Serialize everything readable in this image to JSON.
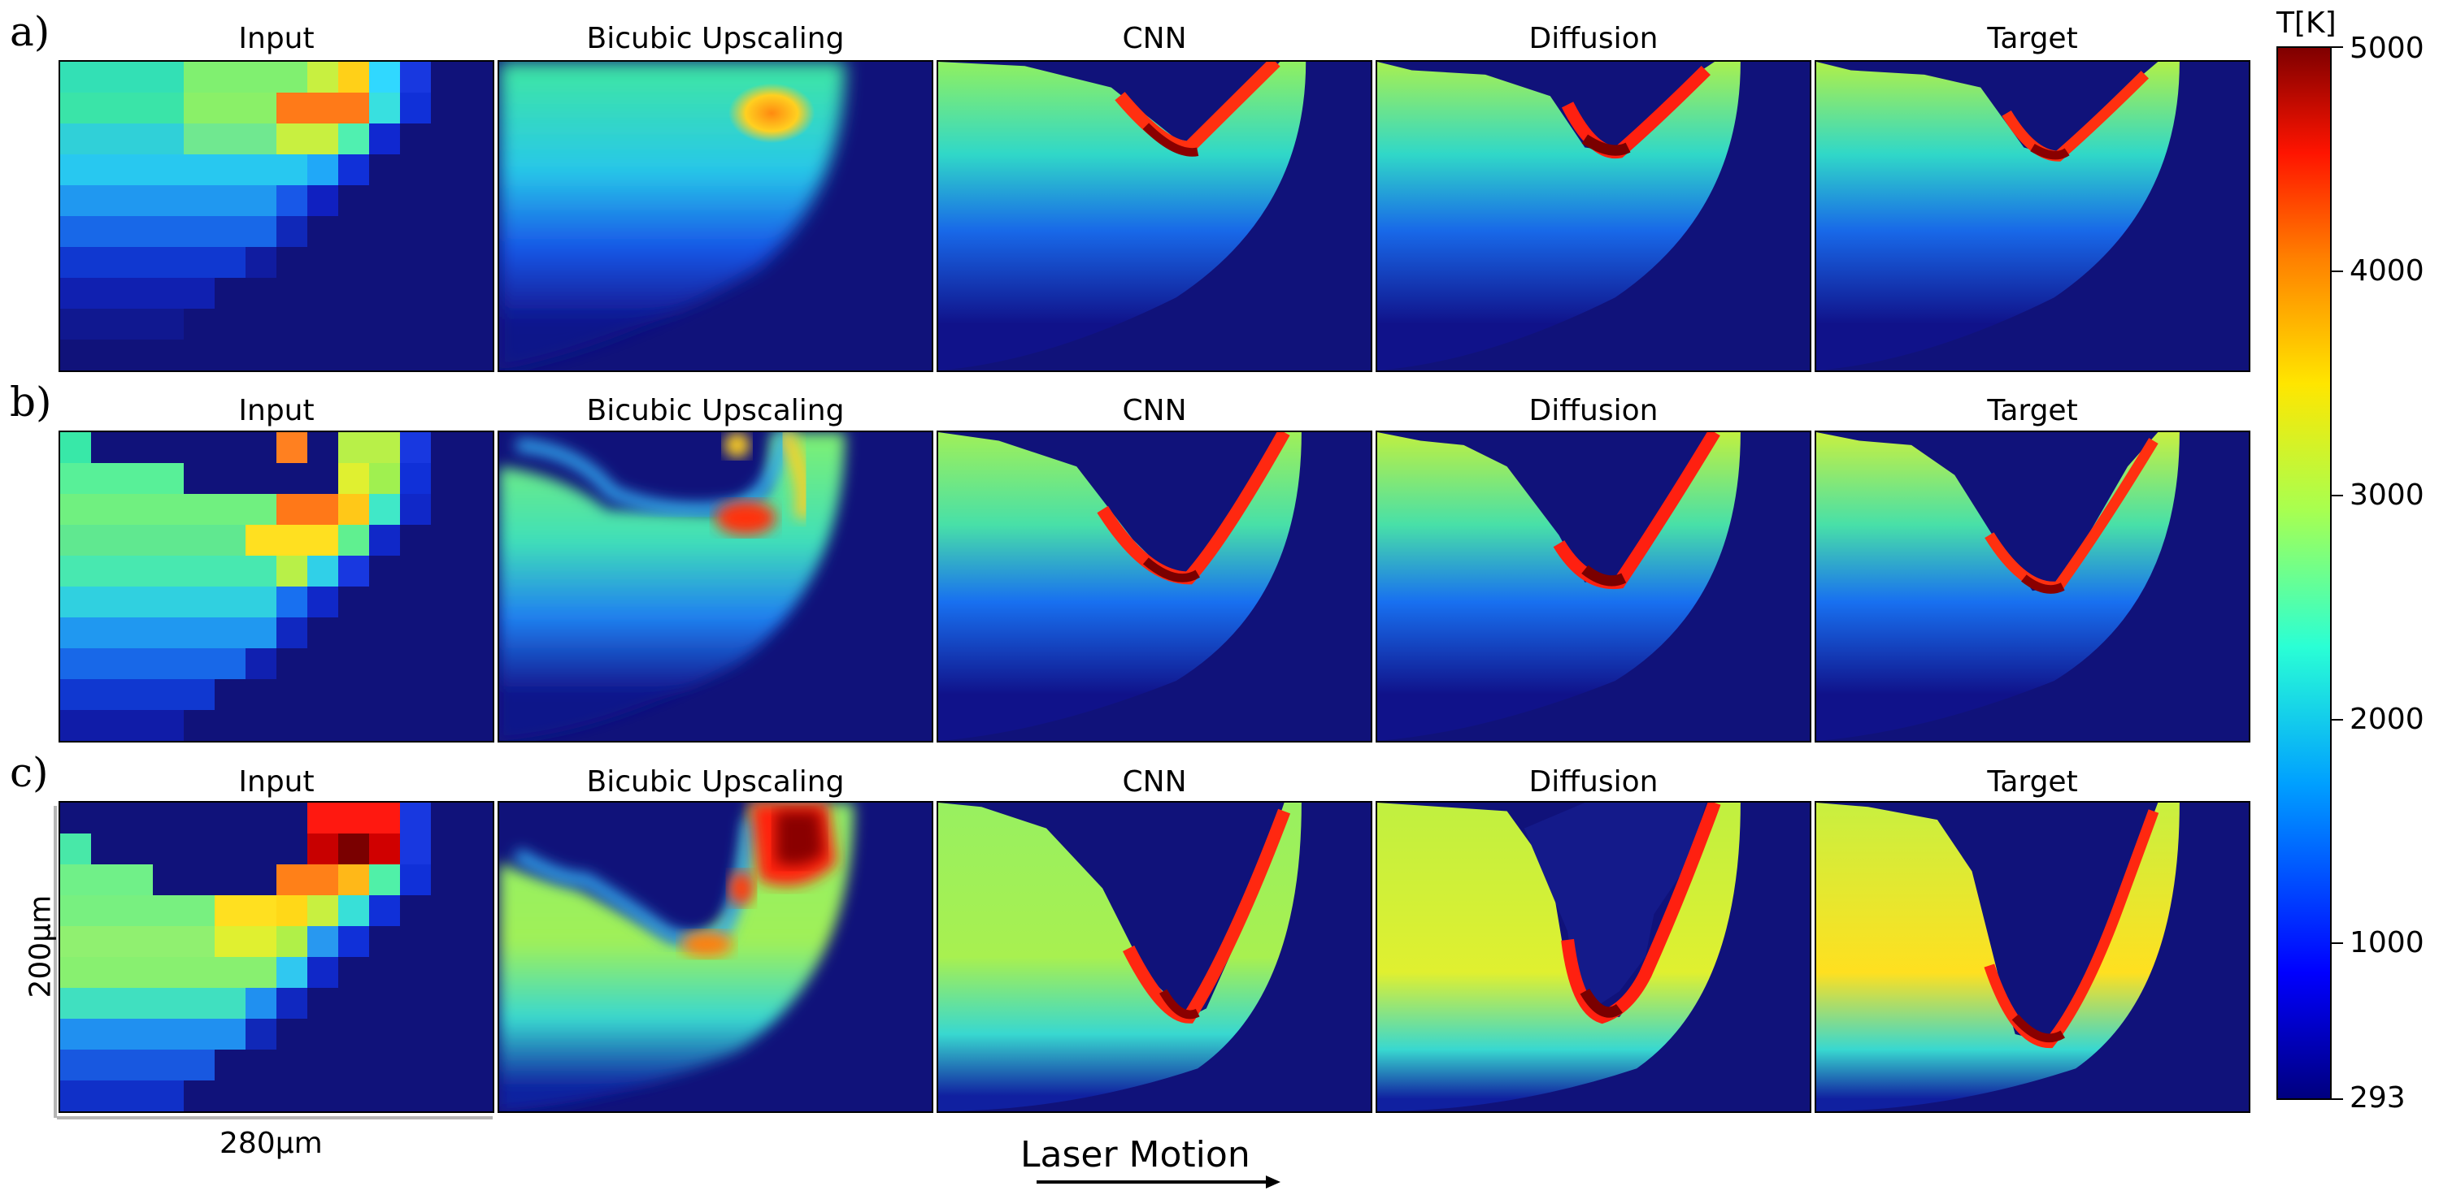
{
  "rows": [
    {
      "label": "a)"
    },
    {
      "label": "b)"
    },
    {
      "label": "c)"
    }
  ],
  "columns": [
    {
      "title": "Input"
    },
    {
      "title": "Bicubic Upscaling"
    },
    {
      "title": "CNN"
    },
    {
      "title": "Diffusion"
    },
    {
      "title": "Target"
    }
  ],
  "colorbar": {
    "title": "T[K]",
    "ticks": [
      "5000",
      "4000",
      "3000",
      "2000",
      "1000",
      "293"
    ],
    "colormap": "jet"
  },
  "scale_bars": {
    "vertical": "200μm",
    "horizontal": "280μm"
  },
  "annotation": {
    "text": "Laser Motion",
    "arrow": "right-arrow-icon"
  }
}
